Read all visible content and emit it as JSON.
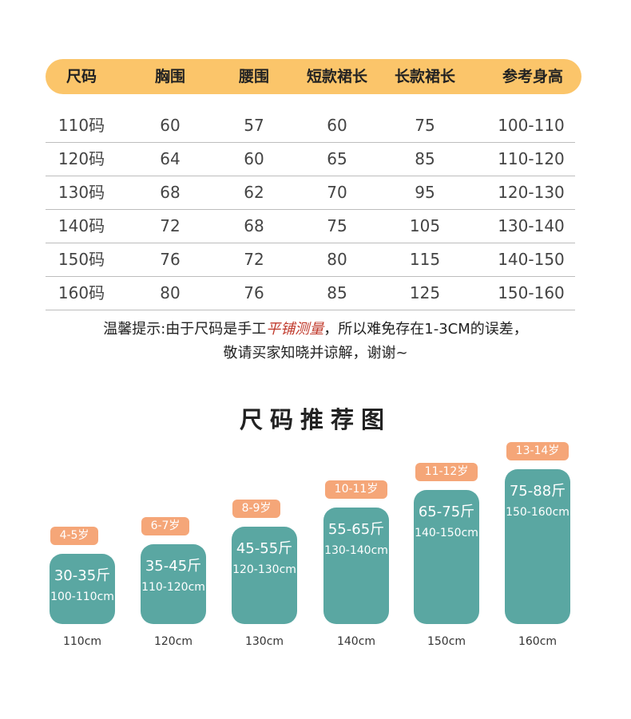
{
  "table": {
    "headers": [
      "尺码",
      "胸围",
      "腰围",
      "短款裙长",
      "长款裙长",
      "参考身高"
    ],
    "rows": [
      [
        "110码",
        "60",
        "57",
        "60",
        "75",
        "100-110"
      ],
      [
        "120码",
        "64",
        "60",
        "65",
        "85",
        "110-120"
      ],
      [
        "130码",
        "68",
        "62",
        "70",
        "95",
        "120-130"
      ],
      [
        "140码",
        "72",
        "68",
        "75",
        "105",
        "130-140"
      ],
      [
        "150码",
        "76",
        "72",
        "80",
        "115",
        "140-150"
      ],
      [
        "160码",
        "80",
        "76",
        "85",
        "125",
        "150-160"
      ]
    ]
  },
  "note": {
    "line1_prefix": "温馨提示:由于尺码是手工",
    "line1_highlight": "平铺测量",
    "line1_suffix": "，所以难免存在1-3CM的误差，",
    "line2": "敬请买家知晓并谅解，谢谢~"
  },
  "recommend": {
    "title": "尺码推荐图",
    "items": [
      {
        "age": "4-5岁",
        "weight": "30-35斤",
        "height": "100-110cm",
        "base": "110cm"
      },
      {
        "age": "6-7岁",
        "weight": "35-45斤",
        "height": "110-120cm",
        "base": "120cm"
      },
      {
        "age": "8-9岁",
        "weight": "45-55斤",
        "height": "120-130cm",
        "base": "130cm"
      },
      {
        "age": "10-11岁",
        "weight": "55-65斤",
        "height": "130-140cm",
        "base": "140cm"
      },
      {
        "age": "11-12岁",
        "weight": "65-75斤",
        "height": "140-150cm",
        "base": "150cm"
      },
      {
        "age": "13-14岁",
        "weight": "75-88斤",
        "height": "150-160cm",
        "base": "160cm"
      }
    ]
  },
  "colors": {
    "header_bg": "#fbc56a",
    "badge": "#f5a678",
    "bar": "#5aa7a2",
    "highlight": "#c0392b"
  }
}
